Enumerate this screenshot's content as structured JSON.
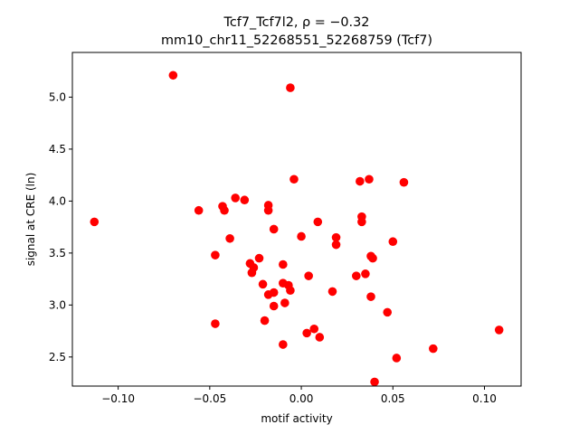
{
  "chart_data": {
    "type": "scatter",
    "title_line1": "Tcf7_Tcf7l2, ρ = −0.32",
    "title_line2": "mm10_chr11_52268551_52268759 (Tcf7)",
    "xlabel": "motif activity",
    "ylabel": "signal at CRE (ln)",
    "xlim": [
      -0.125,
      0.12
    ],
    "ylim": [
      2.22,
      5.43
    ],
    "xticks": [
      -0.1,
      -0.05,
      0.0,
      0.05,
      0.1
    ],
    "xtick_labels": [
      "−0.10",
      "−0.05",
      "0.00",
      "0.05",
      "0.10"
    ],
    "yticks": [
      2.5,
      3.0,
      3.5,
      4.0,
      4.5,
      5.0
    ],
    "ytick_labels": [
      "2.5",
      "3.0",
      "3.5",
      "4.0",
      "4.5",
      "5.0"
    ],
    "grid": false,
    "marker_color": "#ff0000",
    "points": [
      {
        "x": -0.07,
        "y": 5.21
      },
      {
        "x": -0.006,
        "y": 5.09
      },
      {
        "x": -0.004,
        "y": 4.21
      },
      {
        "x": 0.032,
        "y": 4.19
      },
      {
        "x": 0.037,
        "y": 4.21
      },
      {
        "x": 0.056,
        "y": 4.18
      },
      {
        "x": -0.113,
        "y": 3.8
      },
      {
        "x": -0.056,
        "y": 3.91
      },
      {
        "x": -0.043,
        "y": 3.95
      },
      {
        "x": -0.042,
        "y": 3.91
      },
      {
        "x": -0.036,
        "y": 4.03
      },
      {
        "x": -0.031,
        "y": 4.01
      },
      {
        "x": -0.018,
        "y": 3.96
      },
      {
        "x": -0.018,
        "y": 3.91
      },
      {
        "x": -0.015,
        "y": 3.73
      },
      {
        "x": -0.039,
        "y": 3.64
      },
      {
        "x": -0.047,
        "y": 3.48
      },
      {
        "x": 0.0,
        "y": 3.66
      },
      {
        "x": 0.009,
        "y": 3.8
      },
      {
        "x": 0.033,
        "y": 3.85
      },
      {
        "x": 0.033,
        "y": 3.8
      },
      {
        "x": 0.019,
        "y": 3.65
      },
      {
        "x": 0.019,
        "y": 3.58
      },
      {
        "x": 0.038,
        "y": 3.47
      },
      {
        "x": 0.039,
        "y": 3.45
      },
      {
        "x": 0.05,
        "y": 3.61
      },
      {
        "x": -0.023,
        "y": 3.45
      },
      {
        "x": -0.028,
        "y": 3.4
      },
      {
        "x": -0.027,
        "y": 3.31
      },
      {
        "x": -0.026,
        "y": 3.36
      },
      {
        "x": -0.01,
        "y": 3.39
      },
      {
        "x": -0.021,
        "y": 3.2
      },
      {
        "x": -0.01,
        "y": 3.21
      },
      {
        "x": -0.007,
        "y": 3.19
      },
      {
        "x": -0.006,
        "y": 3.14
      },
      {
        "x": -0.018,
        "y": 3.1
      },
      {
        "x": -0.015,
        "y": 3.12
      },
      {
        "x": 0.004,
        "y": 3.28
      },
      {
        "x": 0.03,
        "y": 3.28
      },
      {
        "x": 0.035,
        "y": 3.3
      },
      {
        "x": 0.017,
        "y": 3.13
      },
      {
        "x": 0.038,
        "y": 3.08
      },
      {
        "x": -0.015,
        "y": 2.99
      },
      {
        "x": -0.009,
        "y": 3.02
      },
      {
        "x": -0.047,
        "y": 2.82
      },
      {
        "x": -0.02,
        "y": 2.85
      },
      {
        "x": 0.007,
        "y": 2.77
      },
      {
        "x": 0.003,
        "y": 2.73
      },
      {
        "x": 0.01,
        "y": 2.69
      },
      {
        "x": 0.047,
        "y": 2.93
      },
      {
        "x": -0.01,
        "y": 2.62
      },
      {
        "x": 0.052,
        "y": 2.49
      },
      {
        "x": 0.04,
        "y": 2.26
      },
      {
        "x": 0.072,
        "y": 2.58
      },
      {
        "x": 0.108,
        "y": 2.76
      }
    ]
  }
}
